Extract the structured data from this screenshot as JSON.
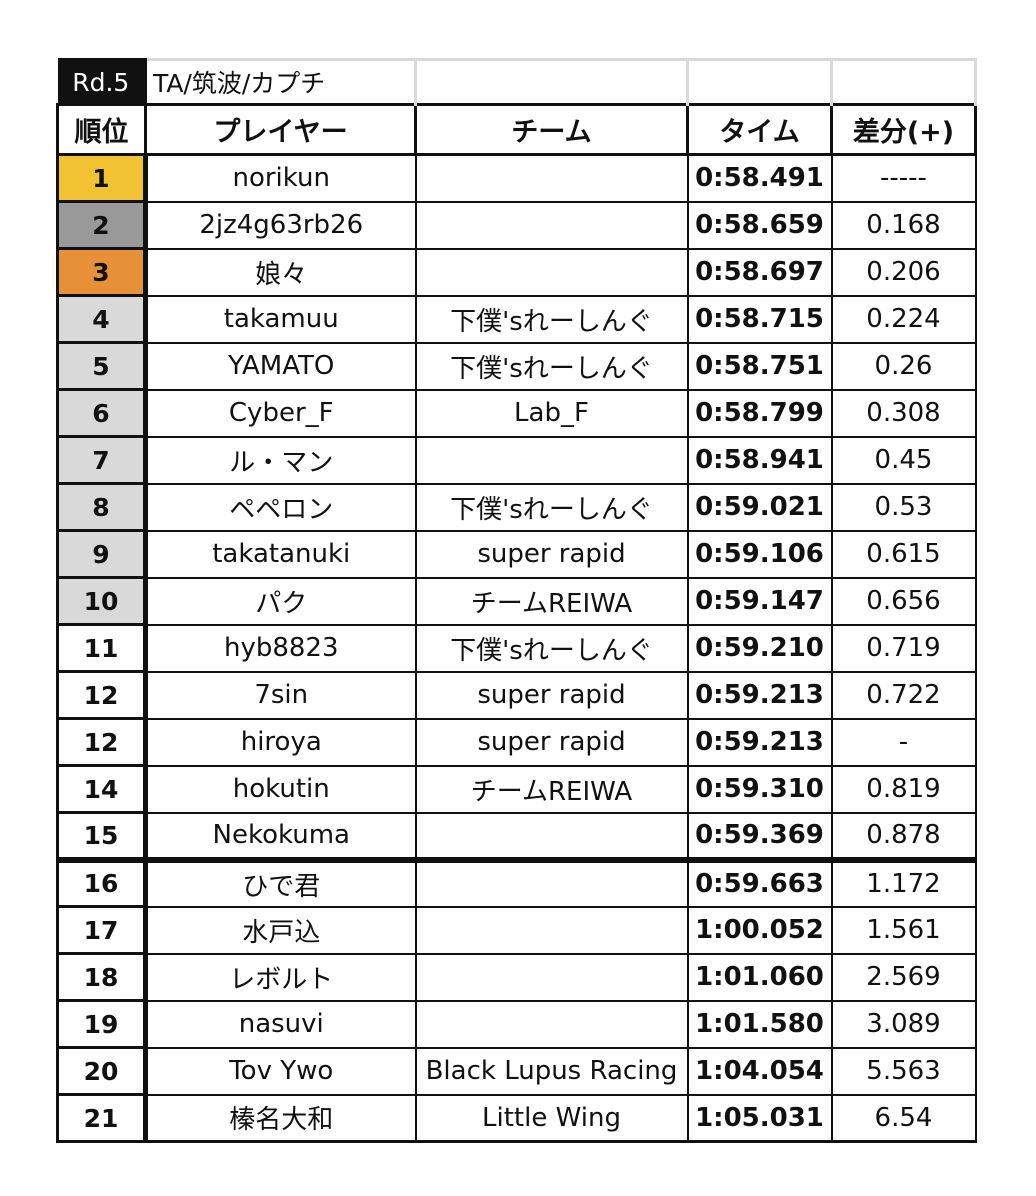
{
  "title": {
    "round": "Rd.5",
    "track": "TA/筑波/カプチ"
  },
  "headers": {
    "rank": "順位",
    "player": "プレイヤー",
    "team": "チーム",
    "time": "タイム",
    "diff": "差分(+)"
  },
  "colors": {
    "gold": "#f1c232",
    "silver": "#999999",
    "bronze": "#e69138",
    "top10": "#d9d9d9"
  },
  "rows": [
    {
      "rank": "1",
      "player": "norikun",
      "team": "",
      "time": "0:58.491",
      "diff": "-----"
    },
    {
      "rank": "2",
      "player": "2jz4g63rb26",
      "team": "",
      "time": "0:58.659",
      "diff": "0.168"
    },
    {
      "rank": "3",
      "player": "娘々",
      "team": "",
      "time": "0:58.697",
      "diff": "0.206"
    },
    {
      "rank": "4",
      "player": "takamuu",
      "team": "下僕'sれーしんぐ",
      "time": "0:58.715",
      "diff": "0.224"
    },
    {
      "rank": "5",
      "player": "YAMATO",
      "team": "下僕'sれーしんぐ",
      "time": "0:58.751",
      "diff": "0.26"
    },
    {
      "rank": "6",
      "player": "Cyber_F",
      "team": "Lab_F",
      "time": "0:58.799",
      "diff": "0.308"
    },
    {
      "rank": "7",
      "player": "ル・マン",
      "team": "",
      "time": "0:58.941",
      "diff": "0.45"
    },
    {
      "rank": "8",
      "player": "ペペロン",
      "team": "下僕'sれーしんぐ",
      "time": "0:59.021",
      "diff": "0.53"
    },
    {
      "rank": "9",
      "player": "takatanuki",
      "team": "super rapid",
      "time": "0:59.106",
      "diff": "0.615"
    },
    {
      "rank": "10",
      "player": "パク",
      "team": "チームREIWA",
      "time": "0:59.147",
      "diff": "0.656"
    },
    {
      "rank": "11",
      "player": "hyb8823",
      "team": "下僕'sれーしんぐ",
      "time": "0:59.210",
      "diff": "0.719"
    },
    {
      "rank": "12",
      "player": "7sin",
      "team": "super rapid",
      "time": "0:59.213",
      "diff": "0.722"
    },
    {
      "rank": "12",
      "player": "hiroya",
      "team": "super rapid",
      "time": "0:59.213",
      "diff": "-"
    },
    {
      "rank": "14",
      "player": "hokutin",
      "team": "チームREIWA",
      "time": "0:59.310",
      "diff": "0.819"
    },
    {
      "rank": "15",
      "player": "Nekokuma",
      "team": "",
      "time": "0:59.369",
      "diff": "0.878"
    },
    {
      "rank": "16",
      "player": "ひで君",
      "team": "",
      "time": "0:59.663",
      "diff": "1.172"
    },
    {
      "rank": "17",
      "player": "水戸込",
      "team": "",
      "time": "1:00.052",
      "diff": "1.561"
    },
    {
      "rank": "18",
      "player": "レボルト",
      "team": "",
      "time": "1:01.060",
      "diff": "2.569"
    },
    {
      "rank": "19",
      "player": "nasuvi",
      "team": "",
      "time": "1:01.580",
      "diff": "3.089"
    },
    {
      "rank": "20",
      "player": "Tov Ywo",
      "team": "Black Lupus Racing",
      "time": "1:04.054",
      "diff": "5.563"
    },
    {
      "rank": "21",
      "player": "榛名大和",
      "team": "Little Wing",
      "time": "1:05.031",
      "diff": "6.54"
    }
  ]
}
